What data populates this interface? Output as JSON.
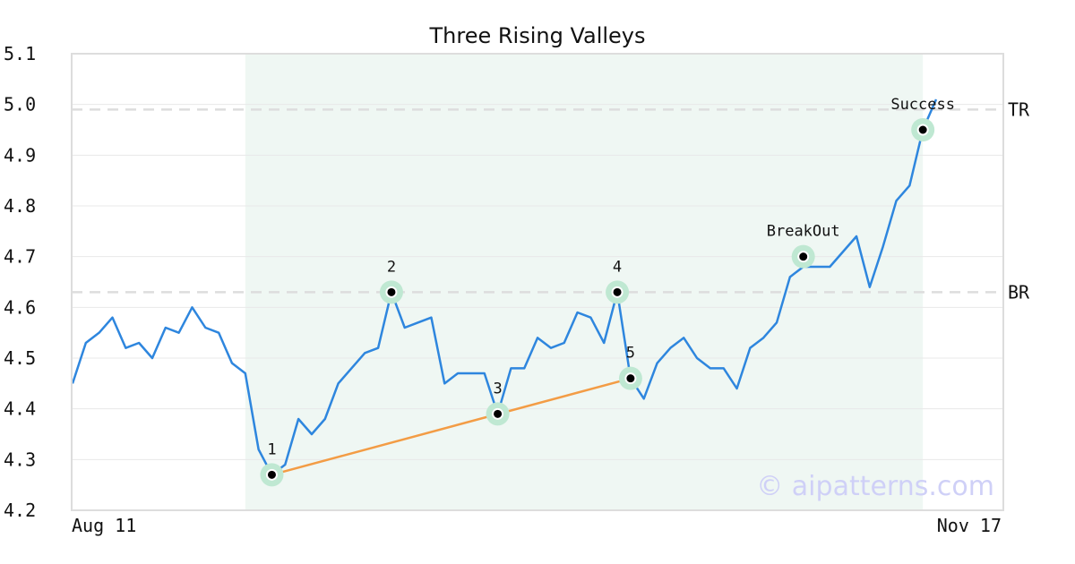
{
  "chart_data": {
    "type": "line",
    "title": "Three Rising Valleys",
    "xlabel": "",
    "ylabel": "",
    "ylim": [
      4.2,
      5.1
    ],
    "yticks": [
      "4.2",
      "4.3",
      "4.4",
      "4.5",
      "4.6",
      "4.7",
      "4.8",
      "4.9",
      "5.0",
      "5.1"
    ],
    "x_start_label": "Aug 11",
    "x_end_label": "Nov 17",
    "grid": true,
    "series": [
      {
        "color": "#2e86de",
        "values": [
          4.45,
          4.53,
          4.55,
          4.58,
          4.52,
          4.53,
          4.5,
          4.56,
          4.55,
          4.6,
          4.56,
          4.55,
          4.49,
          4.47,
          4.32,
          4.27,
          4.29,
          4.38,
          4.35,
          4.38,
          4.45,
          4.48,
          4.51,
          4.52,
          4.63,
          4.56,
          4.57,
          4.58,
          4.45,
          4.47,
          4.47,
          4.47,
          4.39,
          4.48,
          4.48,
          4.54,
          4.52,
          4.53,
          4.59,
          4.58,
          4.53,
          4.63,
          4.46,
          4.42,
          4.49,
          4.52,
          4.54,
          4.5,
          4.48,
          4.48,
          4.44,
          4.52,
          4.54,
          4.57,
          4.66,
          4.68,
          4.68,
          4.68,
          4.71,
          4.74,
          4.64,
          4.72,
          4.81,
          4.84,
          4.95,
          5.01
        ]
      }
    ],
    "pattern_zone": {
      "start_index": 13,
      "end_index": 64,
      "color": "#eff7f3"
    },
    "levels": [
      {
        "label": "TR",
        "value": 4.99
      },
      {
        "label": "BR",
        "value": 4.63
      }
    ],
    "points": [
      {
        "label": "1",
        "index": 15,
        "value": 4.27
      },
      {
        "label": "2",
        "index": 24,
        "value": 4.63
      },
      {
        "label": "3",
        "index": 32,
        "value": 4.39
      },
      {
        "label": "4",
        "index": 41,
        "value": 4.63
      },
      {
        "label": "5",
        "index": 42,
        "value": 4.46
      },
      {
        "label": "BreakOut",
        "index": 55,
        "value": 4.7
      },
      {
        "label": "Success",
        "index": 64,
        "value": 4.95
      }
    ],
    "trendline": {
      "from_point": 0,
      "to_point": 4,
      "color": "#f39c45"
    },
    "watermark": "© aipatterns.com"
  }
}
